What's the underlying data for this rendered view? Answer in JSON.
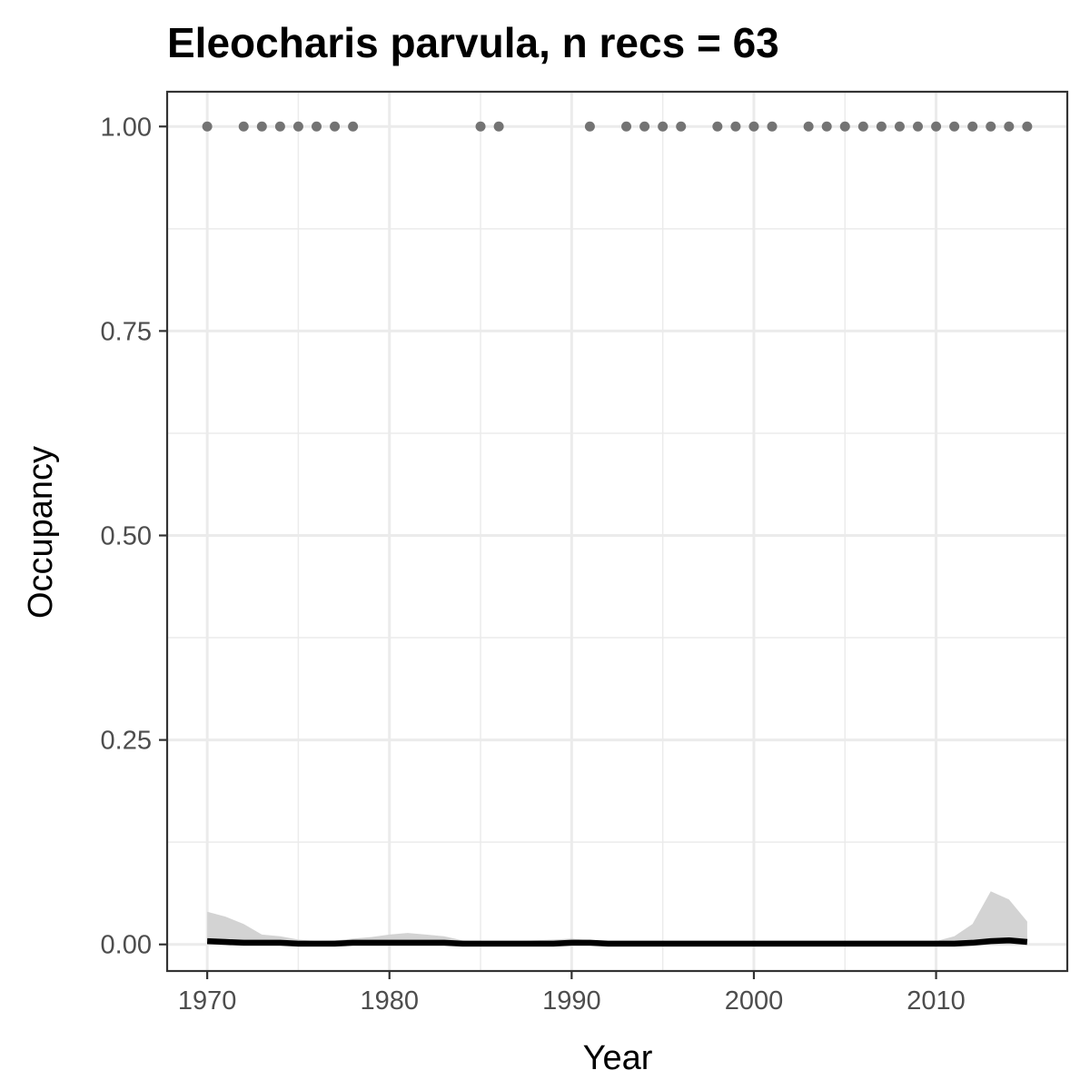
{
  "chart_data": {
    "type": "line",
    "title": "Eleocharis parvula, n recs = 63",
    "xlabel": "Year",
    "ylabel": "Occupancy",
    "xlim": [
      1967.8,
      2017.2
    ],
    "ylim": [
      -0.0325,
      1.0425
    ],
    "x_ticks": [
      1970,
      1980,
      1990,
      2000,
      2010
    ],
    "y_ticks": [
      0,
      0.25,
      0.5,
      0.75,
      1
    ],
    "x_tick_labels": [
      "1970",
      "1980",
      "1990",
      "2000",
      "2010"
    ],
    "y_tick_labels": [
      "0.00",
      "0.25",
      "0.50",
      "0.75",
      "1.00"
    ],
    "grid": true,
    "colors": {
      "points": "#737373",
      "line": "#000000",
      "ribbon": "#d3d3d3",
      "grid": "#ebebeb",
      "panel_border": "#333333",
      "tick_label": "#4d4d4d"
    },
    "points": {
      "y": 1.0,
      "x": [
        1970,
        1972,
        1973,
        1974,
        1975,
        1976,
        1977,
        1978,
        1985,
        1986,
        1991,
        1993,
        1994,
        1995,
        1996,
        1998,
        1999,
        2000,
        2001,
        2003,
        2004,
        2005,
        2006,
        2007,
        2008,
        2009,
        2010,
        2011,
        2012,
        2013,
        2014,
        2015
      ]
    },
    "trend": {
      "x": [
        1970,
        1971,
        1972,
        1973,
        1974,
        1975,
        1976,
        1977,
        1978,
        1979,
        1980,
        1981,
        1982,
        1983,
        1984,
        1985,
        1986,
        1987,
        1988,
        1989,
        1990,
        1991,
        1992,
        1993,
        1994,
        1995,
        1996,
        1997,
        1998,
        1999,
        2000,
        2001,
        2002,
        2003,
        2004,
        2005,
        2006,
        2007,
        2008,
        2009,
        2010,
        2011,
        2012,
        2013,
        2014,
        2015
      ],
      "mean": [
        0.004,
        0.003,
        0.002,
        0.002,
        0.002,
        0.001,
        0.001,
        0.001,
        0.002,
        0.002,
        0.002,
        0.002,
        0.002,
        0.002,
        0.001,
        0.001,
        0.001,
        0.001,
        0.001,
        0.001,
        0.002,
        0.002,
        0.001,
        0.001,
        0.001,
        0.001,
        0.001,
        0.001,
        0.001,
        0.001,
        0.001,
        0.001,
        0.001,
        0.001,
        0.001,
        0.001,
        0.001,
        0.001,
        0.001,
        0.001,
        0.001,
        0.001,
        0.002,
        0.004,
        0.005,
        0.003
      ],
      "lower": [
        0,
        0,
        0,
        0,
        0,
        0,
        0,
        0,
        0,
        0,
        0,
        0,
        0,
        0,
        0,
        0,
        0,
        0,
        0,
        0,
        0,
        0,
        0,
        0,
        0,
        0,
        0,
        0,
        0,
        0,
        0,
        0,
        0,
        0,
        0,
        0,
        0,
        0,
        0,
        0,
        0,
        0,
        0,
        0,
        0,
        0
      ],
      "upper": [
        0.04,
        0.034,
        0.025,
        0.012,
        0.01,
        0.006,
        0.004,
        0.005,
        0.007,
        0.009,
        0.012,
        0.014,
        0.012,
        0.01,
        0.005,
        0.003,
        0.003,
        0.004,
        0.005,
        0.006,
        0.007,
        0.005,
        0.003,
        0.002,
        0.002,
        0.002,
        0.002,
        0.002,
        0.002,
        0.002,
        0.002,
        0.002,
        0.002,
        0.002,
        0.002,
        0.002,
        0.002,
        0.002,
        0.002,
        0.002,
        0.004,
        0.01,
        0.025,
        0.065,
        0.055,
        0.028
      ]
    }
  }
}
